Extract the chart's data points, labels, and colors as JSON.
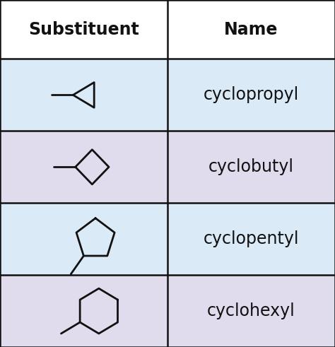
{
  "title_left": "Substituent",
  "title_right": "Name",
  "names": [
    "cyclopropyl",
    "cyclobutyl",
    "cyclopentyl",
    "cyclohexyl"
  ],
  "row_colors_left": [
    "#dbeaf7",
    "#e0dced",
    "#dbeaf7",
    "#e0dced"
  ],
  "row_colors_right": [
    "#dbeaf7",
    "#e0dced",
    "#dbeaf7",
    "#e0dced"
  ],
  "header_color": "#ffffff",
  "border_color": "#111111",
  "text_color": "#111111",
  "header_fontsize": 17,
  "name_fontsize": 17,
  "fig_width": 4.74,
  "fig_height": 4.91,
  "dpi": 100
}
